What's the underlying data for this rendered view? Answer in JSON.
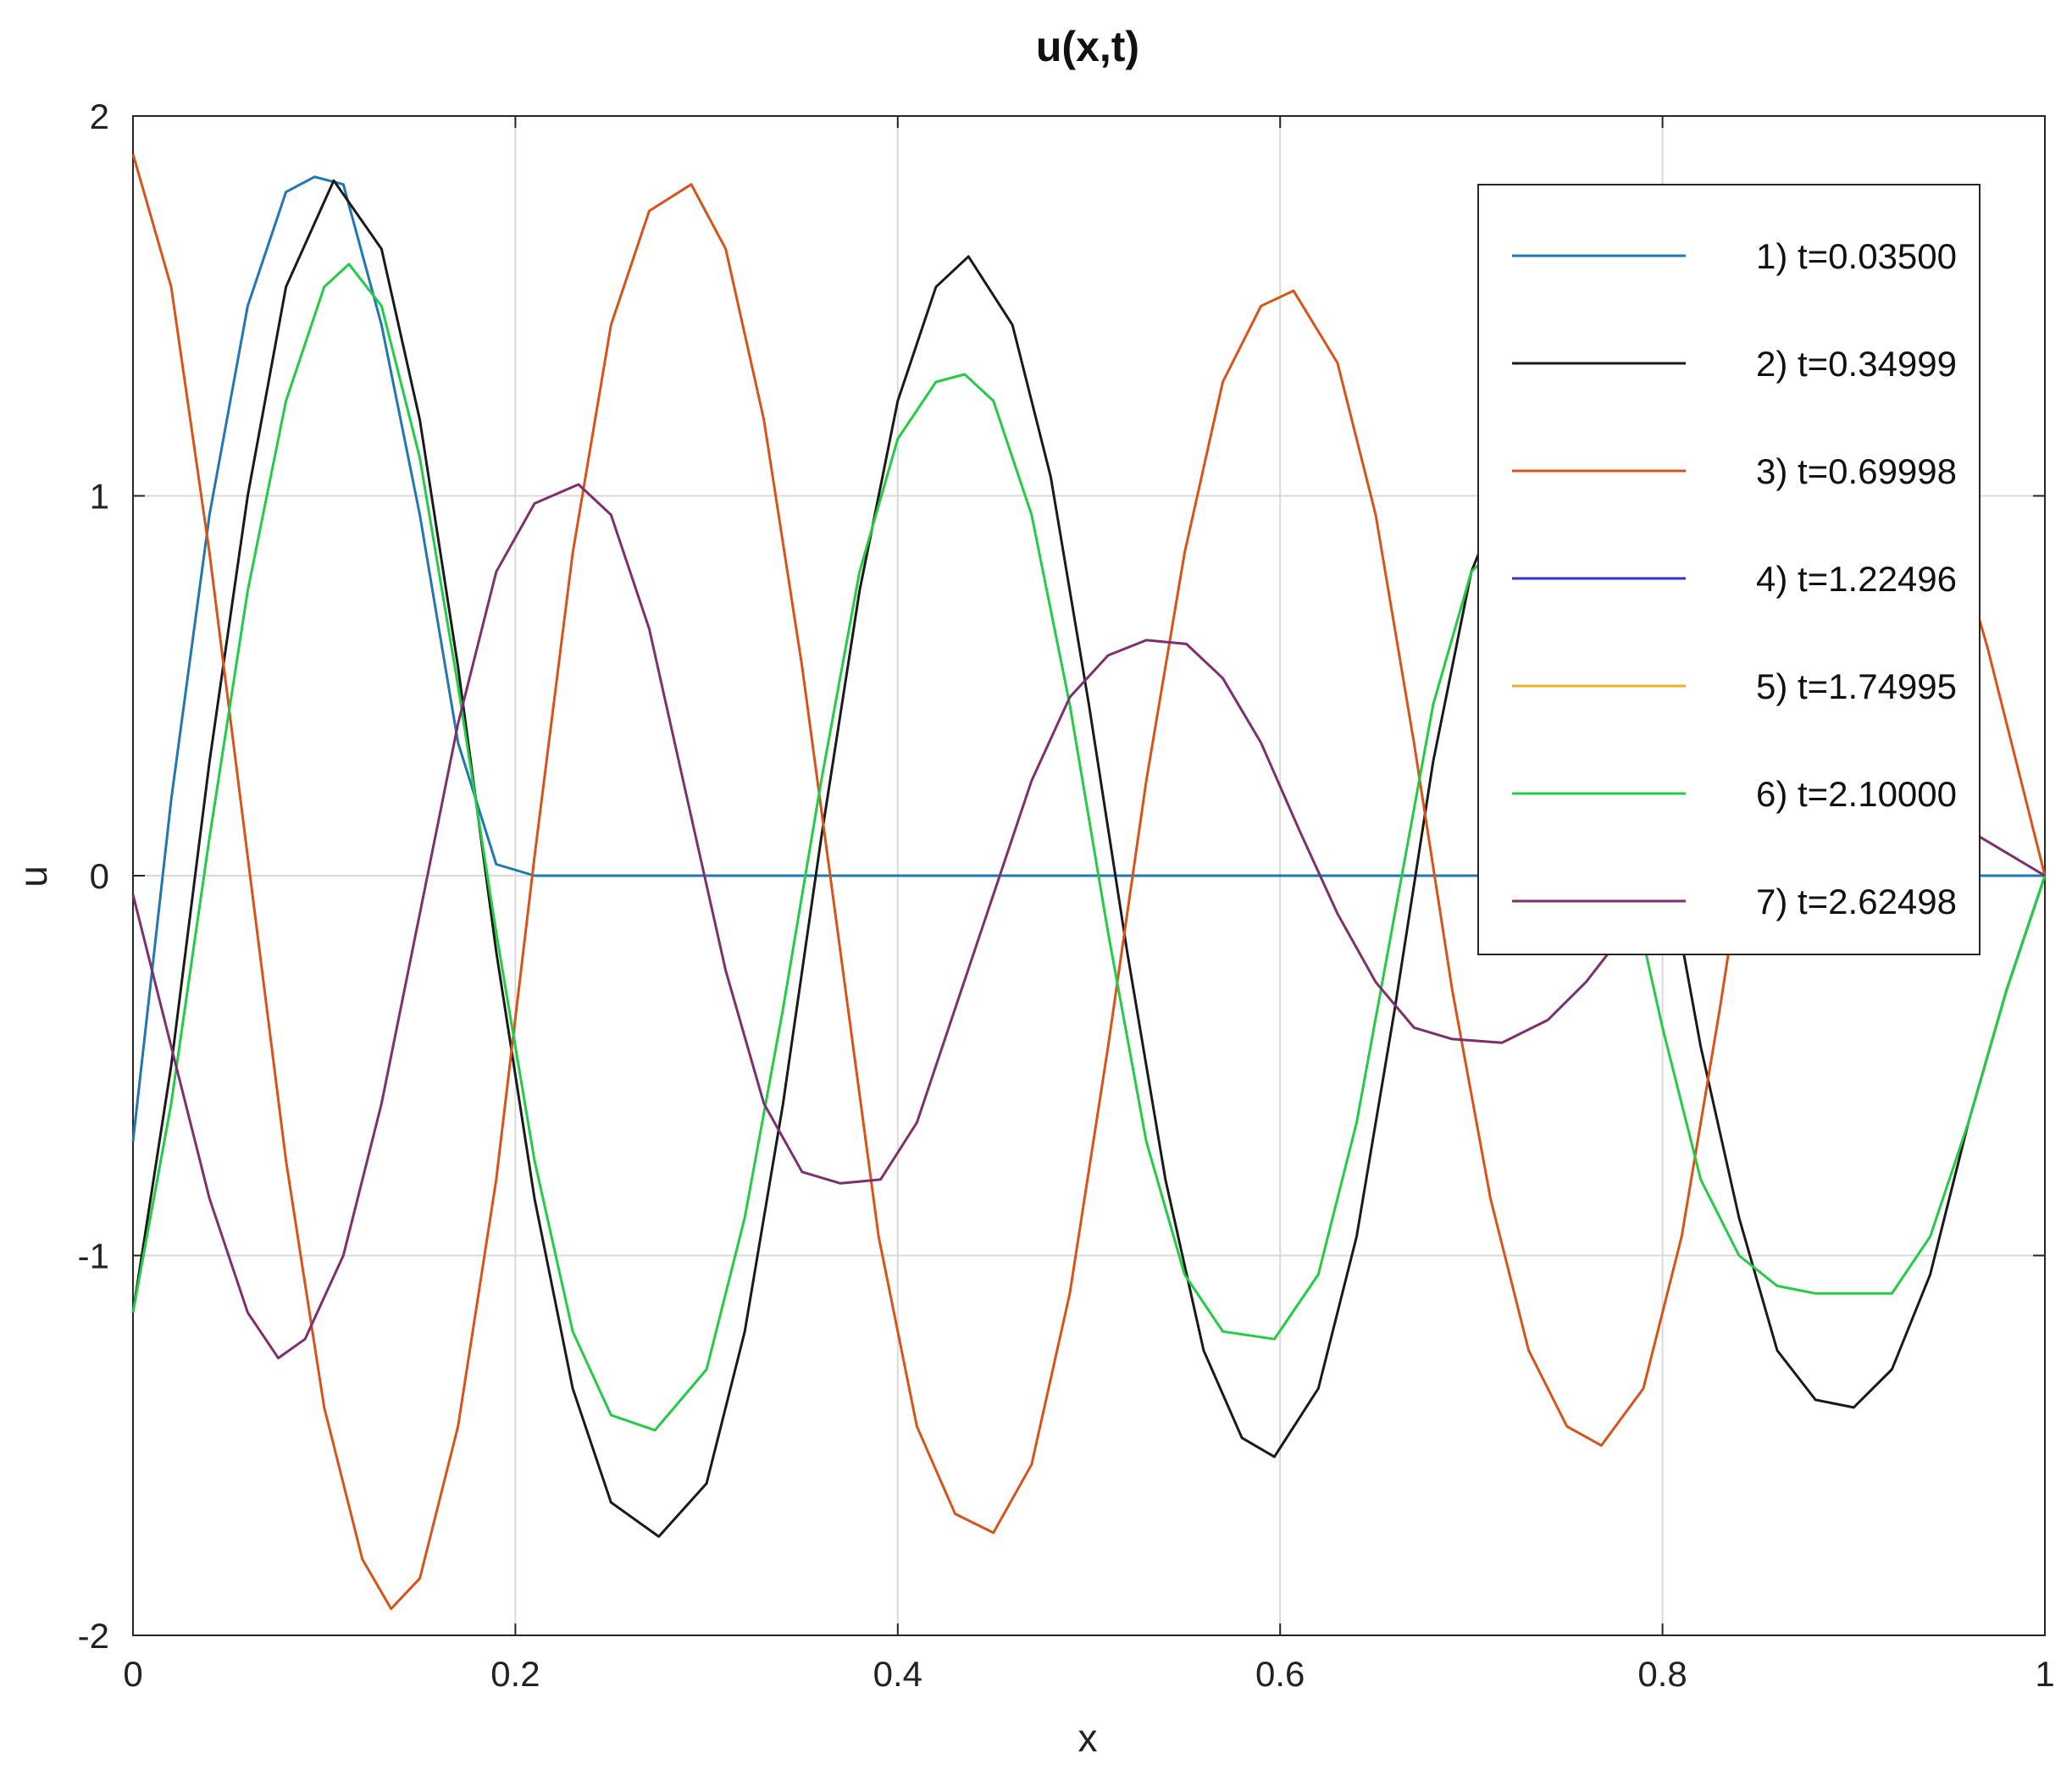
{
  "chart_data": {
    "type": "line",
    "title": "u(x,t)",
    "xlabel": "x",
    "ylabel": "u",
    "xlim": [
      0,
      1
    ],
    "ylim": [
      -2,
      2
    ],
    "xticks": [
      0,
      0.2,
      0.4,
      0.6,
      0.8,
      1
    ],
    "xtick_labels": [
      "0",
      "0.2",
      "0.4",
      "0.6",
      "0.8",
      "1"
    ],
    "yticks": [
      -2,
      -1,
      0,
      1,
      2
    ],
    "ytick_labels": [
      "-2",
      "-1",
      "0",
      "1",
      "2"
    ],
    "grid": true,
    "legend_position": "top-right",
    "series": [
      {
        "name": "1) t=0.03500",
        "color": "#1f77b4",
        "x": [
          0,
          0.02,
          0.04,
          0.06,
          0.08,
          0.095,
          0.11,
          0.13,
          0.15,
          0.17,
          0.19,
          0.21,
          0.3,
          0.5,
          0.7,
          0.9,
          1.0
        ],
        "y": [
          -0.7,
          0.2,
          0.95,
          1.5,
          1.8,
          1.84,
          1.82,
          1.45,
          0.95,
          0.35,
          0.03,
          0.0,
          0.0,
          0.0,
          0.0,
          0.0,
          0.0
        ]
      },
      {
        "name": "2) t=0.34999",
        "color": "#1a1a1a",
        "x": [
          0,
          0.02,
          0.04,
          0.06,
          0.08,
          0.105,
          0.13,
          0.15,
          0.17,
          0.19,
          0.21,
          0.23,
          0.25,
          0.275,
          0.3,
          0.32,
          0.34,
          0.36,
          0.38,
          0.4,
          0.42,
          0.437,
          0.46,
          0.48,
          0.5,
          0.52,
          0.54,
          0.56,
          0.58,
          0.597,
          0.62,
          0.64,
          0.66,
          0.68,
          0.7,
          0.72,
          0.74,
          0.76,
          0.78,
          0.8,
          0.82,
          0.84,
          0.86,
          0.88,
          0.9,
          0.92,
          0.94,
          0.96,
          0.98,
          1.0
        ],
        "y": [
          -1.15,
          -0.5,
          0.3,
          1.0,
          1.55,
          1.83,
          1.65,
          1.2,
          0.55,
          -0.2,
          -0.85,
          -1.35,
          -1.65,
          -1.74,
          -1.6,
          -1.2,
          -0.6,
          0.1,
          0.75,
          1.25,
          1.55,
          1.63,
          1.45,
          1.05,
          0.45,
          -0.2,
          -0.8,
          -1.25,
          -1.48,
          -1.53,
          -1.35,
          -0.95,
          -0.35,
          0.3,
          0.8,
          1.05,
          1.1,
          0.95,
          0.6,
          0.1,
          -0.45,
          -0.9,
          -1.25,
          -1.38,
          -1.4,
          -1.3,
          -1.05,
          -0.65,
          -0.3,
          0.0
        ]
      },
      {
        "name": "3) t=0.69998",
        "color": "#d95319",
        "x": [
          0,
          0.02,
          0.04,
          0.06,
          0.08,
          0.1,
          0.12,
          0.135,
          0.15,
          0.17,
          0.19,
          0.21,
          0.23,
          0.25,
          0.27,
          0.292,
          0.31,
          0.33,
          0.35,
          0.37,
          0.39,
          0.41,
          0.43,
          0.45,
          0.47,
          0.49,
          0.51,
          0.53,
          0.55,
          0.57,
          0.59,
          0.607,
          0.63,
          0.65,
          0.67,
          0.69,
          0.71,
          0.73,
          0.75,
          0.768,
          0.79,
          0.81,
          0.83,
          0.85,
          0.87,
          0.89,
          0.91,
          0.93,
          0.95,
          0.97,
          1.0
        ],
        "y": [
          1.9,
          1.55,
          0.85,
          0.05,
          -0.75,
          -1.4,
          -1.8,
          -1.93,
          -1.85,
          -1.45,
          -0.8,
          0.05,
          0.85,
          1.45,
          1.75,
          1.82,
          1.65,
          1.2,
          0.55,
          -0.2,
          -0.95,
          -1.45,
          -1.68,
          -1.73,
          -1.55,
          -1.1,
          -0.45,
          0.25,
          0.85,
          1.3,
          1.5,
          1.54,
          1.35,
          0.95,
          0.35,
          -0.3,
          -0.85,
          -1.25,
          -1.45,
          -1.5,
          -1.35,
          -0.95,
          -0.35,
          0.3,
          0.85,
          1.2,
          1.3,
          1.2,
          0.95,
          0.6,
          0.0
        ]
      },
      {
        "name": "4) t=1.22496",
        "color": "#3333cc",
        "x": [],
        "y": []
      },
      {
        "name": "5) t=1.74995",
        "color": "#edb120",
        "x": [],
        "y": []
      },
      {
        "name": "6) t=2.10000",
        "color": "#22cc44",
        "x": [
          0,
          0.02,
          0.04,
          0.06,
          0.08,
          0.1,
          0.113,
          0.13,
          0.15,
          0.17,
          0.19,
          0.21,
          0.23,
          0.25,
          0.273,
          0.3,
          0.32,
          0.34,
          0.36,
          0.38,
          0.4,
          0.42,
          0.435,
          0.45,
          0.47,
          0.49,
          0.51,
          0.53,
          0.55,
          0.57,
          0.597,
          0.62,
          0.64,
          0.66,
          0.68,
          0.7,
          0.72,
          0.74,
          0.76,
          0.78,
          0.8,
          0.82,
          0.84,
          0.86,
          0.88,
          0.9,
          0.92,
          0.94,
          0.96,
          0.98,
          1.0
        ],
        "y": [
          -1.15,
          -0.6,
          0.1,
          0.75,
          1.25,
          1.55,
          1.61,
          1.5,
          1.1,
          0.5,
          -0.15,
          -0.75,
          -1.2,
          -1.42,
          -1.46,
          -1.3,
          -0.9,
          -0.35,
          0.25,
          0.8,
          1.15,
          1.3,
          1.32,
          1.25,
          0.95,
          0.45,
          -0.15,
          -0.7,
          -1.05,
          -1.2,
          -1.22,
          -1.05,
          -0.65,
          -0.1,
          0.45,
          0.8,
          0.9,
          0.8,
          0.5,
          0.05,
          -0.4,
          -0.8,
          -1.0,
          -1.08,
          -1.1,
          -1.1,
          -1.1,
          -0.95,
          -0.65,
          -0.3,
          0.0
        ]
      },
      {
        "name": "7) t=2.62498",
        "color": "#7e2f6e",
        "x": [
          0,
          0.02,
          0.04,
          0.06,
          0.076,
          0.09,
          0.11,
          0.13,
          0.15,
          0.17,
          0.19,
          0.21,
          0.233,
          0.25,
          0.27,
          0.29,
          0.31,
          0.33,
          0.35,
          0.37,
          0.391,
          0.41,
          0.43,
          0.45,
          0.47,
          0.49,
          0.51,
          0.53,
          0.551,
          0.57,
          0.59,
          0.61,
          0.63,
          0.65,
          0.67,
          0.69,
          0.716,
          0.74,
          0.76,
          0.78,
          0.8,
          0.82,
          0.84,
          0.86,
          0.88,
          0.9,
          0.92,
          0.94,
          0.96,
          0.98,
          1.0
        ],
        "y": [
          -0.05,
          -0.45,
          -0.85,
          -1.15,
          -1.27,
          -1.22,
          -1.0,
          -0.6,
          -0.1,
          0.4,
          0.8,
          0.98,
          1.03,
          0.95,
          0.65,
          0.2,
          -0.25,
          -0.6,
          -0.78,
          -0.81,
          -0.8,
          -0.65,
          -0.35,
          -0.05,
          0.25,
          0.47,
          0.58,
          0.62,
          0.61,
          0.52,
          0.35,
          0.12,
          -0.1,
          -0.28,
          -0.4,
          -0.43,
          -0.44,
          -0.38,
          -0.28,
          -0.15,
          -0.05,
          0.05,
          0.15,
          0.22,
          0.26,
          0.28,
          0.25,
          0.18,
          0.12,
          0.06,
          0.0
        ]
      }
    ]
  }
}
